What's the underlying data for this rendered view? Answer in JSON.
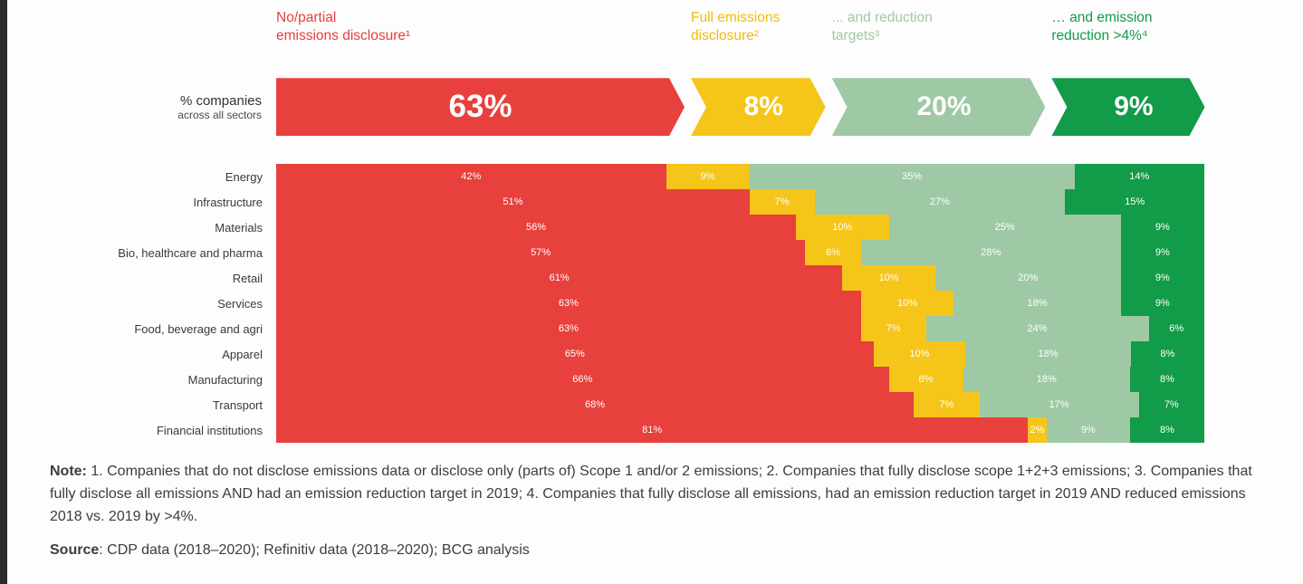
{
  "note": {
    "label": "Note:",
    "text": " 1. Companies that do not disclose emissions data or disclose only (parts of) Scope 1 and/or 2 emissions; 2. Companies that fully disclose scope 1+2+3 emissions; 3. Companies that fully disclose all emissions AND had an emission reduction target in 2019; 4. Companies that fully disclose all emissions, had an emission reduction target in 2019 AND reduced emissions 2018 vs. 2019 by >4%."
  },
  "source": {
    "label": "Source",
    "text": ": CDP data (2018–2020); Refinitiv data (2018–2020); BCG analysis"
  },
  "chart_data": {
    "type": "bar",
    "variant": "horizontal-stacked",
    "unit": "%",
    "legend_position": "top",
    "title": "",
    "xlabel": "",
    "ylabel": "",
    "segments": [
      {
        "key": "no-partial-disclosure",
        "name": "No/partial emissions disclosure",
        "color": "#e8403c",
        "header_color": "#e8403c",
        "header_lines": [
          "No/partial",
          "emissions disclosure¹"
        ]
      },
      {
        "key": "full-disclosure",
        "name": "Full emissions disclosure",
        "color": "#f6c51a",
        "header_color": "#f2bb0e",
        "header_lines": [
          "Full emissions",
          "disclosure²"
        ]
      },
      {
        "key": "reduction-targets",
        "name": "... and reduction targets",
        "color": "#9ec9a4",
        "header_color": "#9ec9a4",
        "header_lines": [
          "... and reduction",
          "targets³"
        ]
      },
      {
        "key": "reduction-gt4",
        "name": "… and emission reduction >4%",
        "color": "#129b48",
        "header_color": "#129b48",
        "header_lines": [
          "… and emission",
          "reduction >4%⁴"
        ]
      }
    ],
    "summary": {
      "label_lines": [
        "% companies",
        "across all sectors"
      ],
      "values": [
        63,
        8,
        20,
        9
      ],
      "arrow_widths_pct": [
        44,
        14.5,
        23,
        16.5
      ]
    },
    "rows": [
      {
        "sector": "Energy",
        "values": [
          42,
          9,
          35,
          14
        ]
      },
      {
        "sector": "Infrastructure",
        "values": [
          51,
          7,
          27,
          15
        ]
      },
      {
        "sector": "Materials",
        "values": [
          56,
          10,
          25,
          9
        ]
      },
      {
        "sector": "Bio, healthcare and pharma",
        "values": [
          57,
          6,
          28,
          9
        ]
      },
      {
        "sector": "Retail",
        "values": [
          61,
          10,
          20,
          9
        ]
      },
      {
        "sector": "Services",
        "values": [
          63,
          10,
          18,
          9
        ]
      },
      {
        "sector": "Food, beverage and agri",
        "values": [
          63,
          7,
          24,
          6
        ]
      },
      {
        "sector": "Apparel",
        "values": [
          65,
          10,
          18,
          8
        ]
      },
      {
        "sector": "Manufacturing",
        "values": [
          66,
          8,
          18,
          8
        ]
      },
      {
        "sector": "Transport",
        "values": [
          68,
          7,
          17,
          7
        ]
      },
      {
        "sector": "Financial institutions",
        "values": [
          81,
          2,
          9,
          8
        ]
      }
    ]
  }
}
